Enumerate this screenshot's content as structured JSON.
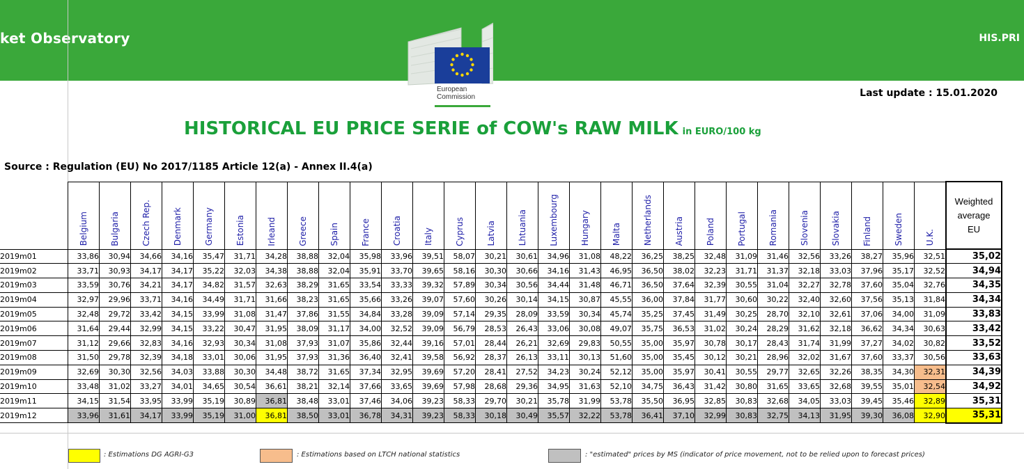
{
  "banner": {
    "left_text": "ket Observatory",
    "right_text": "HIS.PRI"
  },
  "logo": {
    "line1": "European",
    "line2": "Commission",
    "colors": {
      "flag_blue": "#1a3e9a",
      "stars": "#ffd700",
      "green": "#3aa83a"
    }
  },
  "last_update": "Last update : 15.01.2020",
  "title": {
    "main": "HISTORICAL EU PRICE SERIE of COW's RAW MILK",
    "unit": "in EURO/100 kg"
  },
  "source": "Source : Regulation (EU) No 2017/1185 Article 12(a) - Annex II.4(a)",
  "table": {
    "columns": [
      "Belgium",
      "Bulgaria",
      "Czech Rep.",
      "Denmark",
      "Germany",
      "Estonia",
      "Irleand",
      "Greece",
      "Spain",
      "France",
      "Croatia",
      "Italy",
      "Cyprus",
      "Latvia",
      "Lhtuania",
      "Luxembourg",
      "Hungary",
      "Malta",
      "Netherlands",
      "Austria",
      "Poland",
      "Portugal",
      "Romania",
      "Slovenia",
      "Slovakia",
      "Finland",
      "Sweden",
      "U.K."
    ],
    "avg_header": [
      "Weighted",
      "average",
      "EU"
    ],
    "rows": [
      {
        "label": "2019m01",
        "values": [
          "33,86",
          "30,94",
          "34,66",
          "34,16",
          "35,47",
          "31,71",
          "34,28",
          "38,88",
          "32,04",
          "35,98",
          "33,96",
          "39,51",
          "58,07",
          "30,21",
          "30,61",
          "34,96",
          "31,08",
          "48,22",
          "36,25",
          "38,25",
          "32,48",
          "31,09",
          "31,46",
          "32,56",
          "33,26",
          "38,27",
          "35,96",
          "32,51"
        ],
        "avg": "35,02"
      },
      {
        "label": "2019m02",
        "values": [
          "33,71",
          "30,93",
          "34,17",
          "34,17",
          "35,22",
          "32,03",
          "34,38",
          "38,88",
          "32,04",
          "35,91",
          "33,70",
          "39,65",
          "58,16",
          "30,30",
          "30,66",
          "34,16",
          "31,43",
          "46,95",
          "36,50",
          "38,02",
          "32,23",
          "31,71",
          "31,37",
          "32,18",
          "33,03",
          "37,96",
          "35,17",
          "32,52"
        ],
        "avg": "34,94"
      },
      {
        "label": "2019m03",
        "values": [
          "33,59",
          "30,76",
          "34,21",
          "34,17",
          "34,82",
          "31,57",
          "32,63",
          "38,29",
          "31,65",
          "33,54",
          "33,33",
          "39,32",
          "57,89",
          "30,34",
          "30,56",
          "34,44",
          "31,48",
          "46,71",
          "36,50",
          "37,64",
          "32,39",
          "30,55",
          "31,04",
          "32,27",
          "32,78",
          "37,60",
          "35,04",
          "32,76"
        ],
        "avg": "34,35"
      },
      {
        "label": "2019m04",
        "values": [
          "32,97",
          "29,96",
          "33,71",
          "34,16",
          "34,49",
          "31,71",
          "31,66",
          "38,23",
          "31,65",
          "35,66",
          "33,26",
          "39,07",
          "57,60",
          "30,26",
          "30,14",
          "34,15",
          "30,87",
          "45,55",
          "36,00",
          "37,84",
          "31,77",
          "30,60",
          "30,22",
          "32,40",
          "32,60",
          "37,56",
          "35,13",
          "31,84"
        ],
        "avg": "34,34"
      },
      {
        "label": "2019m05",
        "values": [
          "32,48",
          "29,72",
          "33,42",
          "34,15",
          "33,99",
          "31,08",
          "31,47",
          "37,86",
          "31,55",
          "34,84",
          "33,28",
          "39,09",
          "57,14",
          "29,35",
          "28,09",
          "33,59",
          "30,34",
          "45,74",
          "35,25",
          "37,45",
          "31,49",
          "30,25",
          "28,70",
          "32,10",
          "32,61",
          "37,06",
          "34,00",
          "31,09"
        ],
        "avg": "33,83"
      },
      {
        "label": "2019m06",
        "values": [
          "31,64",
          "29,44",
          "32,99",
          "34,15",
          "33,22",
          "30,47",
          "31,95",
          "38,09",
          "31,17",
          "34,00",
          "32,52",
          "39,09",
          "56,79",
          "28,53",
          "26,43",
          "33,06",
          "30,08",
          "49,07",
          "35,75",
          "36,53",
          "31,02",
          "30,24",
          "28,29",
          "31,62",
          "32,18",
          "36,62",
          "34,34",
          "30,63"
        ],
        "avg": "33,42"
      },
      {
        "label": "2019m07",
        "values": [
          "31,12",
          "29,66",
          "32,83",
          "34,16",
          "32,93",
          "30,34",
          "31,08",
          "37,93",
          "31,07",
          "35,86",
          "32,44",
          "39,16",
          "57,01",
          "28,44",
          "26,21",
          "32,69",
          "29,83",
          "50,55",
          "35,00",
          "35,97",
          "30,78",
          "30,17",
          "28,43",
          "31,74",
          "31,99",
          "37,27",
          "34,02",
          "30,82"
        ],
        "avg": "33,52"
      },
      {
        "label": "2019m08",
        "values": [
          "31,50",
          "29,78",
          "32,39",
          "34,18",
          "33,01",
          "30,06",
          "31,95",
          "37,93",
          "31,36",
          "36,40",
          "32,41",
          "39,58",
          "56,92",
          "28,37",
          "26,13",
          "33,11",
          "30,13",
          "51,60",
          "35,00",
          "35,45",
          "30,12",
          "30,21",
          "28,96",
          "32,02",
          "31,67",
          "37,60",
          "33,37",
          "30,56"
        ],
        "avg": "33,63"
      },
      {
        "label": "2019m09",
        "values": [
          "32,69",
          "30,30",
          "32,56",
          "34,03",
          "33,88",
          "30,30",
          "34,48",
          "38,72",
          "31,65",
          "37,34",
          "32,95",
          "39,69",
          "57,20",
          "28,41",
          "27,52",
          "34,23",
          "30,24",
          "52,12",
          "35,00",
          "35,97",
          "30,41",
          "30,55",
          "29,77",
          "32,65",
          "32,26",
          "38,35",
          "34,30",
          "32,31"
        ],
        "avg": "34,39"
      },
      {
        "label": "2019m10",
        "values": [
          "33,48",
          "31,02",
          "33,27",
          "34,01",
          "34,65",
          "30,54",
          "36,61",
          "38,21",
          "32,14",
          "37,66",
          "33,65",
          "39,69",
          "57,98",
          "28,68",
          "29,36",
          "34,95",
          "31,63",
          "52,10",
          "34,75",
          "36,43",
          "31,42",
          "30,80",
          "31,65",
          "33,65",
          "32,68",
          "39,55",
          "35,01",
          "32,54"
        ],
        "avg": "34,92"
      },
      {
        "label": "2019m11",
        "values": [
          "34,15",
          "31,54",
          "33,95",
          "33,99",
          "35,19",
          "30,89",
          "36,81",
          "38,48",
          "33,01",
          "37,46",
          "34,06",
          "39,23",
          "58,33",
          "29,70",
          "30,21",
          "35,78",
          "31,99",
          "53,78",
          "35,50",
          "36,95",
          "32,85",
          "30,83",
          "32,68",
          "34,05",
          "33,03",
          "39,45",
          "35,46",
          "32,89"
        ],
        "avg": "35,31"
      },
      {
        "label": "2019m12",
        "values": [
          "33,96",
          "31,61",
          "34,17",
          "33,99",
          "35,19",
          "31,00",
          "36,81",
          "38,50",
          "33,01",
          "36,78",
          "34,31",
          "39,23",
          "58,33",
          "30,18",
          "30,49",
          "35,57",
          "32,22",
          "53,78",
          "36,41",
          "37,10",
          "32,99",
          "30,83",
          "32,75",
          "34,13",
          "31,95",
          "39,30",
          "36,08",
          "32,90"
        ],
        "avg": "35,31"
      }
    ]
  },
  "legend": [
    {
      "color": "#ffff00",
      "text": ": Estimations DG AGRI-G3"
    },
    {
      "color": "#f7bd8c",
      "text": ": Estimations based on LTCH national statistics"
    },
    {
      "color": "#c0c0c0",
      "text": ": \"estimated\" prices by MS (indicator of price movement, not to be relied upon to forecast prices)"
    }
  ]
}
